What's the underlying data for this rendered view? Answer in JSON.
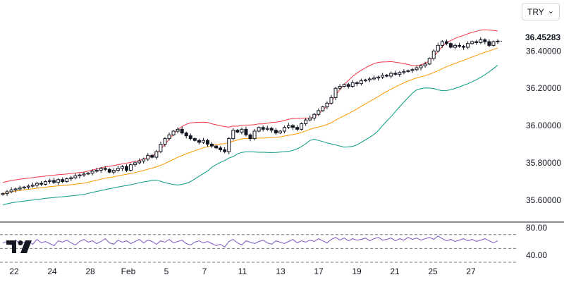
{
  "currency_selector": {
    "value": "TRY",
    "icon": "chevron-down-icon"
  },
  "last_price_label": "36.45283",
  "logo": "tradingview-logo",
  "chart_data": [
    {
      "type": "candlestick",
      "title": "",
      "indicators": [
        "Bollinger Bands",
        "Moving Average"
      ],
      "y_ticks": [
        "35.60000",
        "35.80000",
        "36.00000",
        "36.20000",
        "36.40000"
      ],
      "x_ticks": [
        "22",
        "24",
        "28",
        "Feb",
        "5",
        "7",
        "11",
        "13",
        "17",
        "19",
        "21",
        "25",
        "27"
      ],
      "last_price": 36.45283,
      "ylim": [
        35.52,
        36.56
      ],
      "colors": {
        "upper_band": "#f23645",
        "lower_band": "#089981",
        "basis": "#ff9800",
        "candle": "#131722"
      },
      "close": [
        35.635,
        35.645,
        35.655,
        35.66,
        35.665,
        35.67,
        35.675,
        35.68,
        35.69,
        35.685,
        35.7,
        35.705,
        35.695,
        35.71,
        35.7,
        35.715,
        35.72,
        35.73,
        35.735,
        35.74,
        35.745,
        35.755,
        35.76,
        35.77,
        35.765,
        35.75,
        35.76,
        35.77,
        35.78,
        35.76,
        35.79,
        35.8,
        35.81,
        35.82,
        35.84,
        35.83,
        35.86,
        35.9,
        35.93,
        35.95,
        35.97,
        35.98,
        35.96,
        35.945,
        35.93,
        35.92,
        35.91,
        35.92,
        35.9,
        35.89,
        35.88,
        35.87,
        35.86,
        35.93,
        35.975,
        35.965,
        35.98,
        35.95,
        35.93,
        35.97,
        35.99,
        35.98,
        35.985,
        35.975,
        35.96,
        35.97,
        35.99,
        36.0,
        35.99,
        35.98,
        36.01,
        36.03,
        36.04,
        36.06,
        36.08,
        36.1,
        36.12,
        36.15,
        36.2,
        36.21,
        36.22,
        36.21,
        36.23,
        36.225,
        36.24,
        36.245,
        36.25,
        36.255,
        36.26,
        36.27,
        36.265,
        36.28,
        36.275,
        36.285,
        36.29,
        36.295,
        36.3,
        36.31,
        36.32,
        36.33,
        36.36,
        36.4,
        36.43,
        36.45,
        36.44,
        36.42,
        36.43,
        36.425,
        36.42,
        36.44,
        36.45,
        36.445,
        36.46,
        36.45,
        36.43,
        36.45,
        36.453
      ],
      "rsi": {
        "ylim": [
          30,
          85
        ],
        "y_ticks": [
          "80.00",
          "40.00"
        ],
        "levels": [
          70,
          50,
          30
        ],
        "color": "#7e57c2",
        "values": [
          58,
          60,
          55,
          62,
          57,
          59,
          61,
          56,
          63,
          58,
          60,
          57,
          54,
          61,
          59,
          62,
          58,
          55,
          60,
          63,
          59,
          61,
          57,
          60,
          64,
          58,
          56,
          62,
          59,
          61,
          57,
          60,
          63,
          58,
          62,
          60,
          56,
          61,
          59,
          63,
          58,
          60,
          62,
          57,
          55,
          59,
          61,
          58,
          60,
          57,
          54,
          56,
          52,
          60,
          63,
          58,
          55,
          61,
          59,
          57,
          60,
          62,
          58,
          56,
          61,
          59,
          57,
          60,
          63,
          58,
          61,
          59,
          62,
          60,
          64,
          61,
          58,
          63,
          66,
          62,
          65,
          61,
          64,
          62,
          63,
          65,
          61,
          64,
          66,
          62,
          63,
          65,
          61,
          64,
          62,
          66,
          63,
          65,
          62,
          64,
          66,
          63,
          68,
          64,
          61,
          63,
          60,
          62,
          64,
          61,
          63,
          60,
          62,
          64,
          61,
          58,
          61
        ]
      }
    }
  ]
}
